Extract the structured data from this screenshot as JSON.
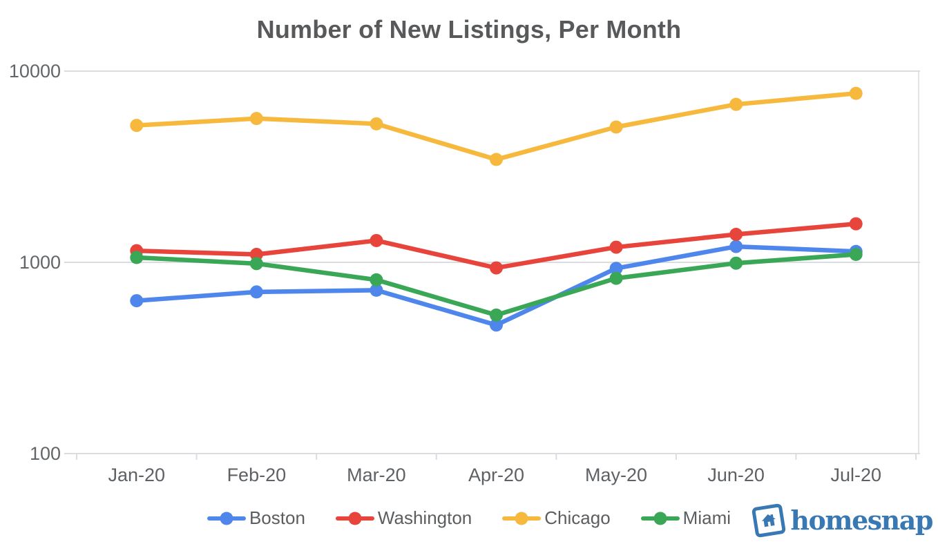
{
  "title": "Number of New Listings, Per Month",
  "watermark": {
    "brand": "homesnap"
  },
  "chart_data": {
    "type": "line",
    "title": "Number of New Listings, Per Month",
    "categories": [
      "Jan-20",
      "Feb-20",
      "Mar-20",
      "Apr-20",
      "May-20",
      "Jun-20",
      "Jul-20"
    ],
    "series": [
      {
        "name": "Boston",
        "color": "#4e86ec",
        "values": [
          630,
          700,
          715,
          470,
          930,
          1210,
          1140
        ]
      },
      {
        "name": "Washington",
        "color": "#e7453c",
        "values": [
          1150,
          1100,
          1300,
          935,
          1200,
          1400,
          1590
        ]
      },
      {
        "name": "Chicago",
        "color": "#f6b93e",
        "values": [
          5200,
          5650,
          5300,
          3450,
          5100,
          6700,
          7650
        ]
      },
      {
        "name": "Miami",
        "color": "#3aa757",
        "values": [
          1060,
          985,
          810,
          530,
          825,
          990,
          1100
        ]
      }
    ],
    "xlabel": "",
    "ylabel": "",
    "y_axis": {
      "scale": "log",
      "ticks": [
        100,
        1000,
        10000
      ],
      "range": [
        100,
        10000
      ]
    },
    "legend_position": "bottom",
    "grid": true,
    "gridline_color": "#dadce0"
  }
}
